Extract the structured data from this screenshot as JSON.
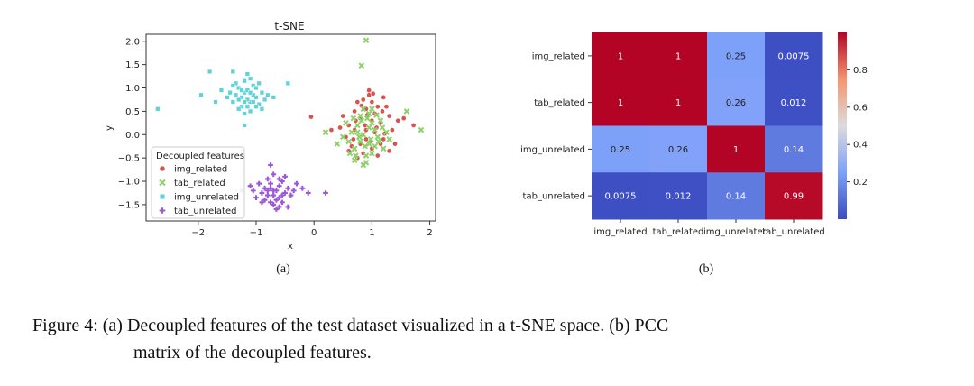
{
  "figure": {
    "subfig_a_label": "(a)",
    "subfig_b_label": "(b)",
    "caption_line1": "Figure 4:  (a) Decoupled features of the test dataset visualized in a t-SNE space. (b) PCC",
    "caption_line2": "matrix of the decoupled features."
  },
  "chart_data": [
    {
      "type": "scatter",
      "title": "t-SNE",
      "xlabel": "x",
      "ylabel": "y",
      "xlim": [
        -2.9,
        2.1
      ],
      "ylim": [
        -1.85,
        2.15
      ],
      "xticks": [
        -2,
        -1,
        0,
        1,
        2
      ],
      "yticks": [
        -1.5,
        -1.0,
        -0.5,
        0.0,
        0.5,
        1.0,
        1.5,
        2.0
      ],
      "xtick_labels": [
        "−2",
        "−1",
        "0",
        "1",
        "2"
      ],
      "ytick_labels": [
        "−1.5",
        "−1.0",
        "−0.5",
        "0.0",
        "0.5",
        "1.0",
        "1.5",
        "2.0"
      ],
      "grid": false,
      "legend": {
        "title": "Decoupled features",
        "placement": "lower-left"
      },
      "series": [
        {
          "name": "img_related",
          "marker": "circle",
          "color": "#d9534f",
          "points": [
            [
              0.9,
              0.1
            ],
            [
              1.0,
              0.3
            ],
            [
              0.8,
              -0.2
            ],
            [
              1.1,
              0.6
            ],
            [
              0.7,
              0.5
            ],
            [
              1.2,
              -0.1
            ],
            [
              0.95,
              0.85
            ],
            [
              0.6,
              0.2
            ],
            [
              1.3,
              0.4
            ],
            [
              0.85,
              -0.4
            ],
            [
              1.05,
              0.05
            ],
            [
              0.75,
              0.7
            ],
            [
              1.15,
              0.25
            ],
            [
              0.55,
              -0.05
            ],
            [
              1.35,
              0.1
            ],
            [
              0.9,
              0.55
            ],
            [
              1.0,
              -0.3
            ],
            [
              0.8,
              0.35
            ],
            [
              1.2,
              0.8
            ],
            [
              0.65,
              -0.25
            ],
            [
              1.4,
              -0.2
            ],
            [
              0.95,
              0.95
            ],
            [
              0.5,
              0.4
            ],
            [
              1.1,
              -0.45
            ],
            [
              0.7,
              0.1
            ],
            [
              1.25,
              0.6
            ],
            [
              0.85,
              0.75
            ],
            [
              1.05,
              0.45
            ],
            [
              0.6,
              -0.35
            ],
            [
              1.3,
              -0.35
            ],
            [
              0.9,
              -0.1
            ],
            [
              1.0,
              0.7
            ],
            [
              0.75,
              -0.5
            ],
            [
              1.15,
              -0.2
            ],
            [
              0.45,
              0.15
            ],
            [
              1.45,
              0.3
            ],
            [
              0.88,
              0.2
            ],
            [
              1.08,
              0.15
            ],
            [
              0.72,
              0.3
            ],
            [
              1.18,
              0.5
            ],
            [
              -0.05,
              0.38
            ],
            [
              1.55,
              0.35
            ],
            [
              1.72,
              0.2
            ],
            [
              0.3,
              0.1
            ],
            [
              0.98,
              -0.15
            ],
            [
              0.82,
              0.62
            ],
            [
              1.02,
              0.88
            ],
            [
              0.68,
              -0.1
            ],
            [
              1.22,
              0.02
            ],
            [
              0.92,
              0.42
            ]
          ]
        },
        {
          "name": "tab_related",
          "marker": "x",
          "color": "#8ed16a",
          "points": [
            [
              0.85,
              0.0
            ],
            [
              0.95,
              -0.2
            ],
            [
              0.75,
              0.2
            ],
            [
              1.05,
              0.1
            ],
            [
              0.9,
              -0.45
            ],
            [
              0.7,
              -0.3
            ],
            [
              1.1,
              -0.05
            ],
            [
              0.8,
              0.4
            ],
            [
              1.0,
              0.25
            ],
            [
              0.65,
              0.05
            ],
            [
              1.15,
              0.3
            ],
            [
              0.9,
              -0.6
            ],
            [
              0.6,
              -0.15
            ],
            [
              1.2,
              -0.3
            ],
            [
              0.85,
              0.55
            ],
            [
              1.0,
              -0.4
            ],
            [
              0.78,
              -0.05
            ],
            [
              0.95,
              0.15
            ],
            [
              0.72,
              -0.45
            ],
            [
              1.08,
              0.42
            ],
            [
              0.55,
              0.25
            ],
            [
              1.25,
              0.05
            ],
            [
              0.88,
              -0.25
            ],
            [
              0.82,
              0.3
            ],
            [
              0.98,
              -0.1
            ],
            [
              0.68,
              0.35
            ],
            [
              1.12,
              -0.15
            ],
            [
              0.92,
              0.35
            ],
            [
              0.62,
              -0.4
            ],
            [
              1.18,
              0.15
            ],
            [
              0.85,
              -0.65
            ],
            [
              0.4,
              -0.2
            ],
            [
              0.5,
              -0.05
            ],
            [
              1.3,
              -0.1
            ],
            [
              0.2,
              0.05
            ],
            [
              0.9,
              2.02
            ],
            [
              0.82,
              1.48
            ],
            [
              1.6,
              0.5
            ],
            [
              1.85,
              0.1
            ],
            [
              0.7,
              -0.55
            ],
            [
              1.0,
              0.55
            ],
            [
              0.75,
              0.05
            ],
            [
              1.05,
              -0.25
            ],
            [
              0.95,
              0.45
            ],
            [
              0.8,
              -0.15
            ]
          ]
        },
        {
          "name": "img_unrelated",
          "marker": "square",
          "color": "#5fd3d8",
          "points": [
            [
              -1.2,
              0.9
            ],
            [
              -1.1,
              0.7
            ],
            [
              -1.3,
              1.0
            ],
            [
              -1.0,
              0.8
            ],
            [
              -1.25,
              0.6
            ],
            [
              -1.05,
              1.05
            ],
            [
              -1.35,
              0.85
            ],
            [
              -0.95,
              0.65
            ],
            [
              -1.15,
              0.95
            ],
            [
              -1.4,
              0.7
            ],
            [
              -0.9,
              0.9
            ],
            [
              -1.2,
              1.15
            ],
            [
              -1.1,
              0.5
            ],
            [
              -1.3,
              0.55
            ],
            [
              -1.0,
              1.0
            ],
            [
              -1.45,
              0.9
            ],
            [
              -0.85,
              0.75
            ],
            [
              -1.25,
              0.8
            ],
            [
              -1.15,
              0.6
            ],
            [
              -1.05,
              0.85
            ],
            [
              -1.35,
              1.1
            ],
            [
              -0.95,
              1.1
            ],
            [
              -1.2,
              0.45
            ],
            [
              -1.5,
              0.8
            ],
            [
              -0.8,
              0.85
            ],
            [
              -1.1,
              1.2
            ],
            [
              -1.3,
              0.75
            ],
            [
              -1.0,
              0.6
            ],
            [
              -1.15,
              0.75
            ],
            [
              -1.25,
              0.95
            ],
            [
              -1.05,
              0.7
            ],
            [
              -1.4,
              1.05
            ],
            [
              -0.9,
              0.55
            ],
            [
              -1.2,
              0.7
            ],
            [
              -1.1,
              0.9
            ],
            [
              -1.6,
              0.95
            ],
            [
              -0.7,
              0.8
            ],
            [
              -1.8,
              1.35
            ],
            [
              -2.7,
              0.55
            ],
            [
              -1.95,
              0.85
            ],
            [
              -1.4,
              1.35
            ],
            [
              -0.45,
              1.1
            ],
            [
              -1.7,
              0.7
            ],
            [
              -1.2,
              0.2
            ],
            [
              -1.15,
              1.3
            ]
          ]
        },
        {
          "name": "tab_unrelated",
          "marker": "plus",
          "color": "#9b59d6",
          "points": [
            [
              -0.7,
              -1.2
            ],
            [
              -0.6,
              -1.1
            ],
            [
              -0.8,
              -1.3
            ],
            [
              -0.5,
              -1.25
            ],
            [
              -0.75,
              -1.05
            ],
            [
              -0.65,
              -1.4
            ],
            [
              -0.85,
              -1.15
            ],
            [
              -0.55,
              -1.0
            ],
            [
              -0.7,
              -1.5
            ],
            [
              -0.9,
              -1.25
            ],
            [
              -0.45,
              -1.15
            ],
            [
              -0.6,
              -1.35
            ],
            [
              -0.8,
              -0.95
            ],
            [
              -0.7,
              -1.3
            ],
            [
              -0.95,
              -1.05
            ],
            [
              -0.4,
              -1.3
            ],
            [
              -0.65,
              -1.2
            ],
            [
              -0.75,
              -1.45
            ],
            [
              -0.55,
              -1.45
            ],
            [
              -1.0,
              -1.35
            ],
            [
              -0.5,
              -0.9
            ],
            [
              -0.85,
              -1.4
            ],
            [
              -0.6,
              -1.55
            ],
            [
              -0.7,
              -0.85
            ],
            [
              -1.05,
              -1.2
            ],
            [
              -0.35,
              -1.2
            ],
            [
              -0.65,
              -1.6
            ],
            [
              -0.8,
              -1.2
            ],
            [
              -0.9,
              -1.45
            ],
            [
              -0.6,
              -0.95
            ],
            [
              -0.75,
              -1.15
            ],
            [
              -0.55,
              -1.3
            ],
            [
              -1.1,
              -1.1
            ],
            [
              -0.3,
              -1.05
            ],
            [
              -0.2,
              -1.15
            ],
            [
              -0.1,
              -1.25
            ],
            [
              -0.75,
              -0.65
            ],
            [
              -1.25,
              -1.2
            ],
            [
              0.2,
              -1.25
            ],
            [
              -0.45,
              -1.55
            ]
          ]
        }
      ]
    },
    {
      "type": "heatmap",
      "rows": [
        "img_related",
        "tab_related",
        "img_unrelated",
        "tab_unrelated"
      ],
      "columns": [
        "img_related",
        "tab_related",
        "img_unrelated",
        "tab_unrelated"
      ],
      "values": [
        [
          1,
          1,
          0.25,
          0.0075
        ],
        [
          1,
          1,
          0.26,
          0.012
        ],
        [
          0.25,
          0.26,
          1,
          0.14
        ],
        [
          0.0075,
          0.012,
          0.14,
          0.99
        ]
      ],
      "cell_labels": [
        [
          "1",
          "1",
          "0.25",
          "0.0075"
        ],
        [
          "1",
          "1",
          "0.26",
          "0.012"
        ],
        [
          "0.25",
          "0.26",
          "1",
          "0.14"
        ],
        [
          "0.0075",
          "0.012",
          "0.14",
          "0.99"
        ]
      ],
      "colormap": "coolwarm",
      "colorbar": {
        "range": [
          0,
          1
        ],
        "ticks": [
          0.2,
          0.4,
          0.6,
          0.8
        ],
        "tick_labels": [
          "0.2",
          "0.4",
          "0.6",
          "0.8"
        ]
      }
    }
  ]
}
